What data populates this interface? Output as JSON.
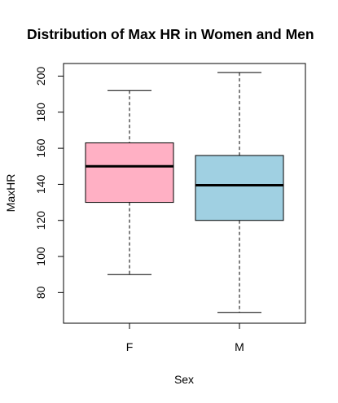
{
  "chart_data": {
    "type": "box",
    "title": "Distribution of Max HR in Women and Men",
    "xlabel": "Sex",
    "ylabel": "MaxHR",
    "ylim": [
      63,
      207
    ],
    "yticks": [
      80,
      100,
      120,
      140,
      160,
      180,
      200
    ],
    "ytick_labels": [
      "80",
      "100",
      "120",
      "140",
      "160",
      "180",
      "200"
    ],
    "categories": [
      "F",
      "M"
    ],
    "boxes": [
      {
        "category": "F",
        "min": 90,
        "q1": 130,
        "median": 150,
        "q3": 163,
        "max": 192,
        "color": "#ffb0c4"
      },
      {
        "category": "M",
        "min": 69,
        "q1": 120,
        "median": 139.5,
        "q3": 156,
        "max": 202,
        "color": "#a0d0e2"
      }
    ],
    "grid": false
  }
}
